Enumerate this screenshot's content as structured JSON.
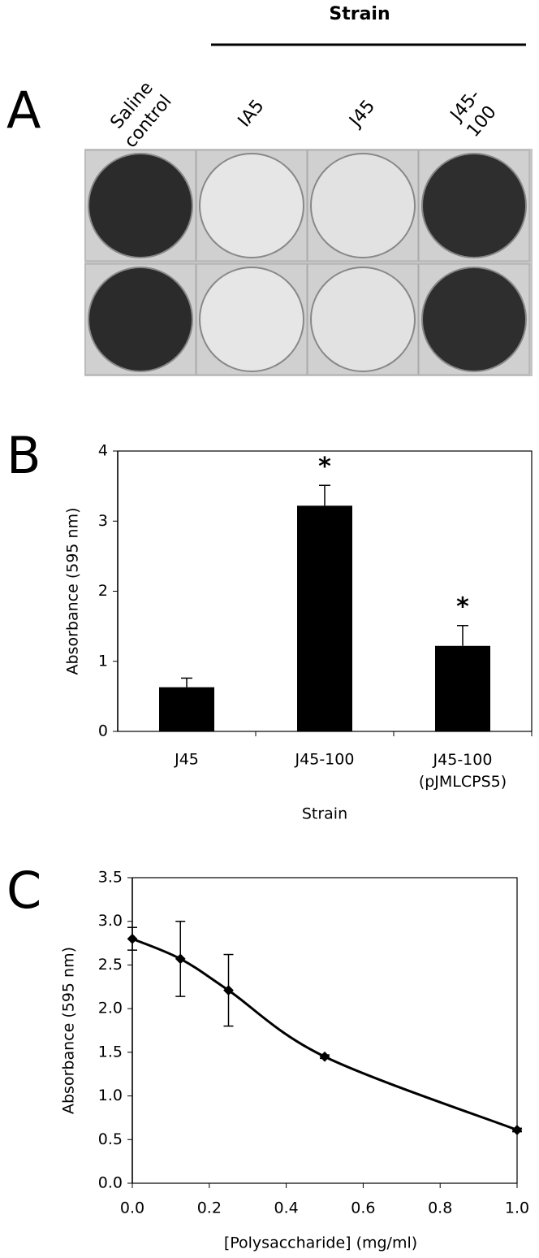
{
  "panel_a": {
    "label": "A",
    "header": "Strain",
    "columns": [
      [
        "Saline",
        "control"
      ],
      [
        "IA5"
      ],
      [
        "J45"
      ],
      [
        "J45-",
        "100"
      ]
    ],
    "well_colors": [
      "#2b2b2b",
      "#e6e6e6",
      "#e2e2e2",
      "#2e2e2e"
    ]
  },
  "chart_data": [
    {
      "type": "bar",
      "label": "B",
      "y_label": "Absorbance (595 nm)",
      "x_label": "Strain",
      "categories": [
        "J45",
        "J45-100",
        "J45-100 (pJMLCPS5)"
      ],
      "values": [
        0.63,
        3.22,
        1.22
      ],
      "errors": [
        0.13,
        0.29,
        0.29
      ],
      "significance": [
        null,
        "*",
        "*"
      ],
      "color": "#000000",
      "ylim": [
        0,
        4
      ],
      "yticks": [
        0,
        1,
        2,
        3,
        4
      ]
    },
    {
      "type": "line",
      "label": "C",
      "y_label": "Absorbance (595 nm)",
      "x_label": "[Polysaccharide] (mg/ml)",
      "x": [
        0,
        0.125,
        0.25,
        0.5,
        1
      ],
      "values": [
        2.8,
        2.57,
        2.21,
        1.45,
        0.61
      ],
      "errors": [
        0.13,
        0.43,
        0.41,
        0.02,
        0.02
      ],
      "color": "#000000",
      "xlim": [
        0,
        1
      ],
      "xticks": [
        {
          "value": 0,
          "label": "0.0"
        },
        {
          "value": 0.2,
          "label": "0.2"
        },
        {
          "value": 0.4,
          "label": "0.4"
        },
        {
          "value": 0.6,
          "label": "0.6"
        },
        {
          "value": 0.8,
          "label": "0.8"
        },
        {
          "value": 1,
          "label": "1.0"
        }
      ],
      "ylim": [
        0,
        3.5
      ],
      "yticks": [
        {
          "value": 0,
          "label": "0.0"
        },
        {
          "value": 0.5,
          "label": "0.5"
        },
        {
          "value": 1,
          "label": "1.0"
        },
        {
          "value": 1.5,
          "label": "1.5"
        },
        {
          "value": 2,
          "label": "2.0"
        },
        {
          "value": 2.5,
          "label": "2.5"
        },
        {
          "value": 3,
          "label": "3.0"
        },
        {
          "value": 3.5,
          "label": "3.5"
        }
      ]
    }
  ]
}
